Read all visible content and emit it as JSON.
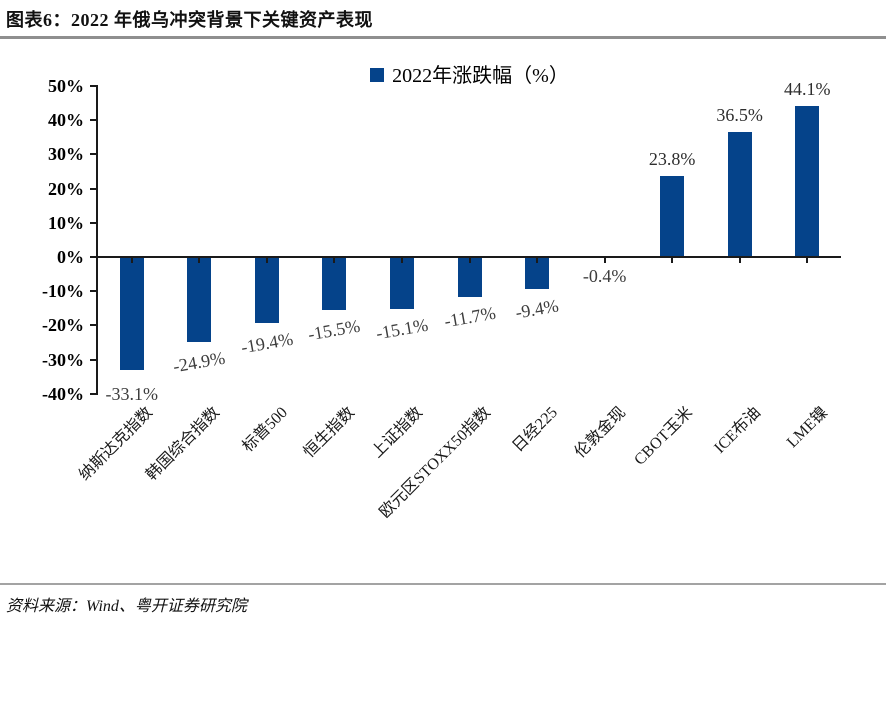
{
  "header": {
    "title": "图表6：2022 年俄乌冲突背景下关键资产表现"
  },
  "footer": {
    "source": "资料来源：Wind、粤开证券研究院"
  },
  "chart_data": {
    "type": "bar",
    "title": "图表6：2022 年俄乌冲突背景下关键资产表现",
    "legend": "2022年涨跌幅（%）",
    "legend_position": "top",
    "grid": false,
    "categories": [
      "纳斯达克指数",
      "韩国综合指数",
      "标普500",
      "恒生指数",
      "上证指数",
      "欧元区STOXX50指数",
      "日经225",
      "伦敦金现",
      "CBOT玉米",
      "ICE布油",
      "LME镍"
    ],
    "values": [
      -33.1,
      -24.9,
      -19.4,
      -15.5,
      -15.1,
      -11.7,
      -9.4,
      -0.4,
      23.8,
      36.5,
      44.1
    ],
    "value_labels": [
      "-33.1%",
      "-24.9%",
      "-19.4%",
      "-15.5%",
      "-15.1%",
      "-11.7%",
      "-9.4%",
      "-0.4%",
      "23.8%",
      "36.5%",
      "44.1%"
    ],
    "ylabel": "",
    "xlabel": "",
    "ylim": [
      -40,
      50
    ],
    "yticks": [
      "50%",
      "40%",
      "30%",
      "20%",
      "10%",
      "0%",
      "-10%",
      "-20%",
      "-30%",
      "-40%"
    ],
    "ytick_values": [
      50,
      40,
      30,
      20,
      10,
      0,
      -10,
      -20,
      -30,
      -40
    ],
    "bar_color": "#05438A",
    "axis_color": "#1a1a1a",
    "label_color": "#3d3d3d"
  }
}
